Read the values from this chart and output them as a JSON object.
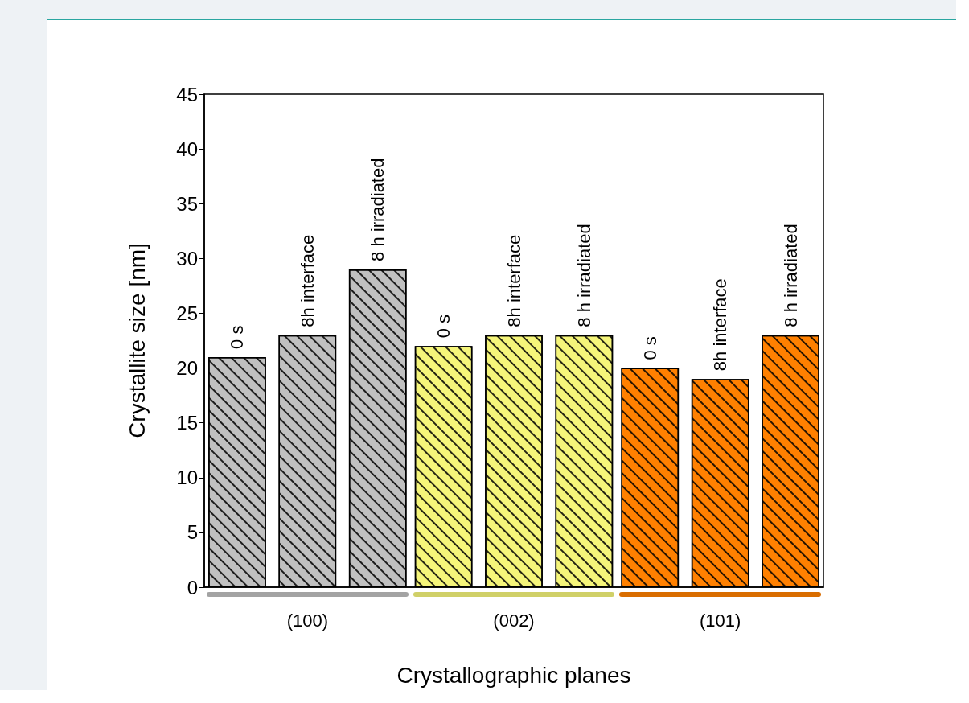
{
  "chart_data": {
    "type": "bar",
    "xlabel": "Crystallographic planes",
    "ylabel": "Crystallite size [nm]",
    "categories": [
      "(100)",
      "(002)",
      "(101)"
    ],
    "series": [
      {
        "name": "0 s",
        "colors": [
          "#c0c0c0",
          "#f5f57a",
          "#ff8000"
        ],
        "values": [
          21,
          22,
          20
        ]
      },
      {
        "name": "8h interface",
        "colors": [
          "#c0c0c0",
          "#f5f57a",
          "#ff8000"
        ],
        "values": [
          23,
          23,
          19
        ]
      },
      {
        "name": "8 h irradiated",
        "colors": [
          "#c0c0c0",
          "#f5f57a",
          "#ff8000"
        ],
        "values": [
          29,
          23,
          23
        ]
      }
    ],
    "ylim": [
      0,
      45
    ],
    "yticks": [
      0,
      5,
      10,
      15,
      20,
      25,
      30,
      35,
      40,
      45
    ],
    "grid": false,
    "legend": false
  }
}
